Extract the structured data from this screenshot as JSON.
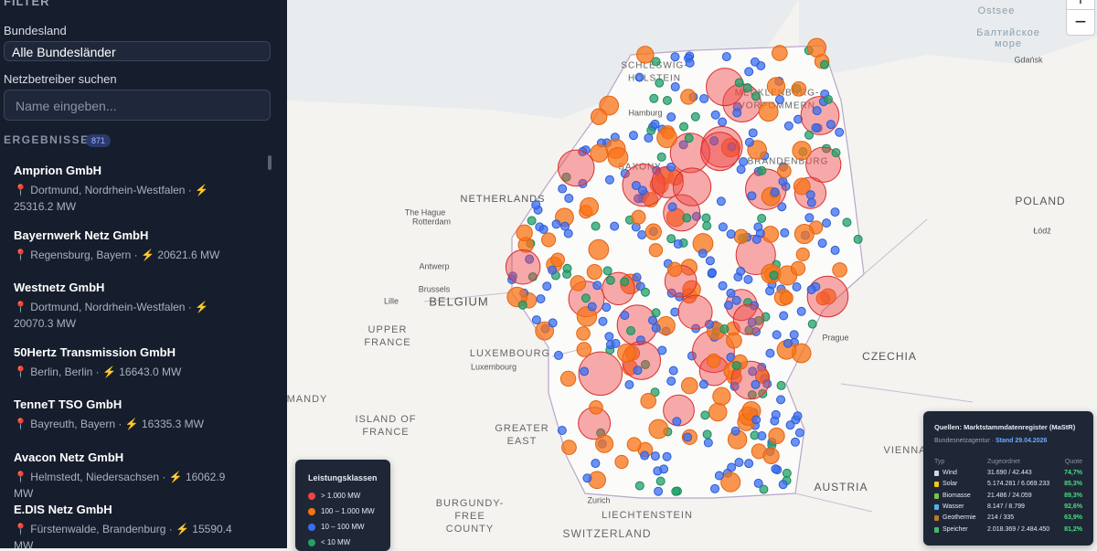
{
  "sidebar": {
    "filter_title": "FILTER",
    "bundesland_label": "Bundesland",
    "bundesland_select": "Alle Bundesländer",
    "search_label": "Netzbetreiber suchen",
    "search_placeholder": "Name eingeben...",
    "results_label": "ERGEBNISSE",
    "results_count": 871,
    "results": [
      {
        "name": "Amprion GmbH",
        "meta": "📍 Dortmund, Nordrhein-Westfalen · ⚡ 25316.2 MW"
      },
      {
        "name": "Bayernwerk Netz GmbH",
        "meta": "📍 Regensburg, Bayern · ⚡ 20621.6 MW"
      },
      {
        "name": "Westnetz GmbH",
        "meta": "📍 Dortmund, Nordrhein-Westfalen · ⚡ 20070.3 MW"
      },
      {
        "name": "50Hertz Transmission GmbH",
        "meta": "📍 Berlin, Berlin · ⚡ 16643.0 MW"
      },
      {
        "name": "TenneT TSO GmbH",
        "meta": "📍 Bayreuth, Bayern · ⚡ 16335.3 MW"
      },
      {
        "name": "Avacon Netz GmbH",
        "meta": "📍 Helmstedt, Niedersachsen · ⚡ 16062.9 MW"
      },
      {
        "name": "E.DIS Netz GmbH",
        "meta": "📍 Fürstenwalde, Brandenburg · ⚡ 15590.4 MW"
      }
    ]
  },
  "map": {
    "zoom_in": "+",
    "zoom_out": "−",
    "labels": [
      "Ostsee",
      "Балтийское",
      "море",
      "Gdańsk",
      "SCHLESWIG-",
      "HOLSTEIN",
      "Hamburg",
      "MECKLENBURG-",
      "VORPOMMERN",
      "SAXONY",
      "BRANDENBURG",
      "NETHERLANDS",
      "The Hague",
      "Rotterdam",
      "POLAND",
      "Łódź",
      "Antwerp",
      "Brussels",
      "BELGIUM",
      "Lille",
      "UPPER",
      "FRANCE",
      "Prague",
      "LUXEMBOURG",
      "Luxembourg",
      "CZECHIA",
      "MANDY",
      "ISLAND OF",
      "FRANCE",
      "GREATER",
      "EAST",
      "VIENNA",
      "AUSTRIA",
      "BURGUNDY-",
      "FREE",
      "COUNTY",
      "LIECHTENSTEIN",
      "SWITZERLAND",
      "Zurich"
    ]
  },
  "legend": {
    "title": "Leistungsklassen",
    "items": [
      "> 1.000 MW",
      "100 – 1.000 MW",
      "10 – 100 MW",
      "< 10 MW"
    ]
  },
  "info": {
    "title": "Quellen: Marktstammdatenregister (MaStR)",
    "source": "Bundesnetzagentur ·",
    "date": "Stand 29.04.2026",
    "headers": [
      "Typ",
      "Zugeordnet",
      "Quote"
    ],
    "rows": [
      [
        "Wind",
        "31.690 / 42.443",
        "74,7%"
      ],
      [
        "Solar",
        "5.174.281 / 6.069.233",
        "85,3%"
      ],
      [
        "Biomasse",
        "21.486 / 24.059",
        "89,3%"
      ],
      [
        "Wasser",
        "8.147 / 8.799",
        "92,6%"
      ],
      [
        "Geothermie",
        "214 / 335",
        "63,9%"
      ],
      [
        "Speicher",
        "2.018.369 / 2.484.450",
        "81,2%"
      ]
    ]
  }
}
